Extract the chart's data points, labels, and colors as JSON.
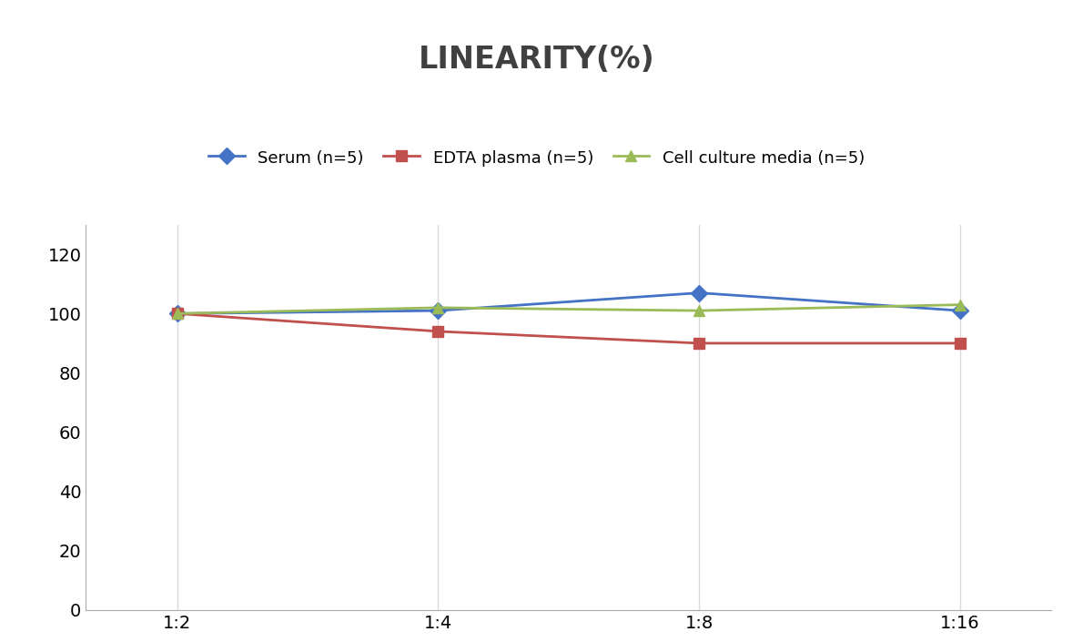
{
  "title": "LINEARITY(%)",
  "x_labels": [
    "1:2",
    "1:4",
    "1:8",
    "1:16"
  ],
  "series": [
    {
      "label": "Serum (n=5)",
      "values": [
        100,
        101,
        107,
        101
      ],
      "color": "#4472C4",
      "marker": "D",
      "marker_color": "#4472C4"
    },
    {
      "label": "EDTA plasma (n=5)",
      "values": [
        100,
        94,
        90,
        90
      ],
      "color": "#C0504D",
      "marker": "s",
      "marker_color": "#C0504D"
    },
    {
      "label": "Cell culture media (n=5)",
      "values": [
        100,
        102,
        101,
        103
      ],
      "color": "#9BBB59",
      "marker": "^",
      "marker_color": "#9BBB59"
    }
  ],
  "ylim": [
    0,
    130
  ],
  "yticks": [
    0,
    20,
    40,
    60,
    80,
    100,
    120
  ],
  "grid_color": "#D9D9D9",
  "background_color": "#FFFFFF",
  "title_fontsize": 24,
  "title_color": "#404040",
  "legend_fontsize": 13,
  "tick_fontsize": 14,
  "line_width": 2.0,
  "marker_size": 9
}
